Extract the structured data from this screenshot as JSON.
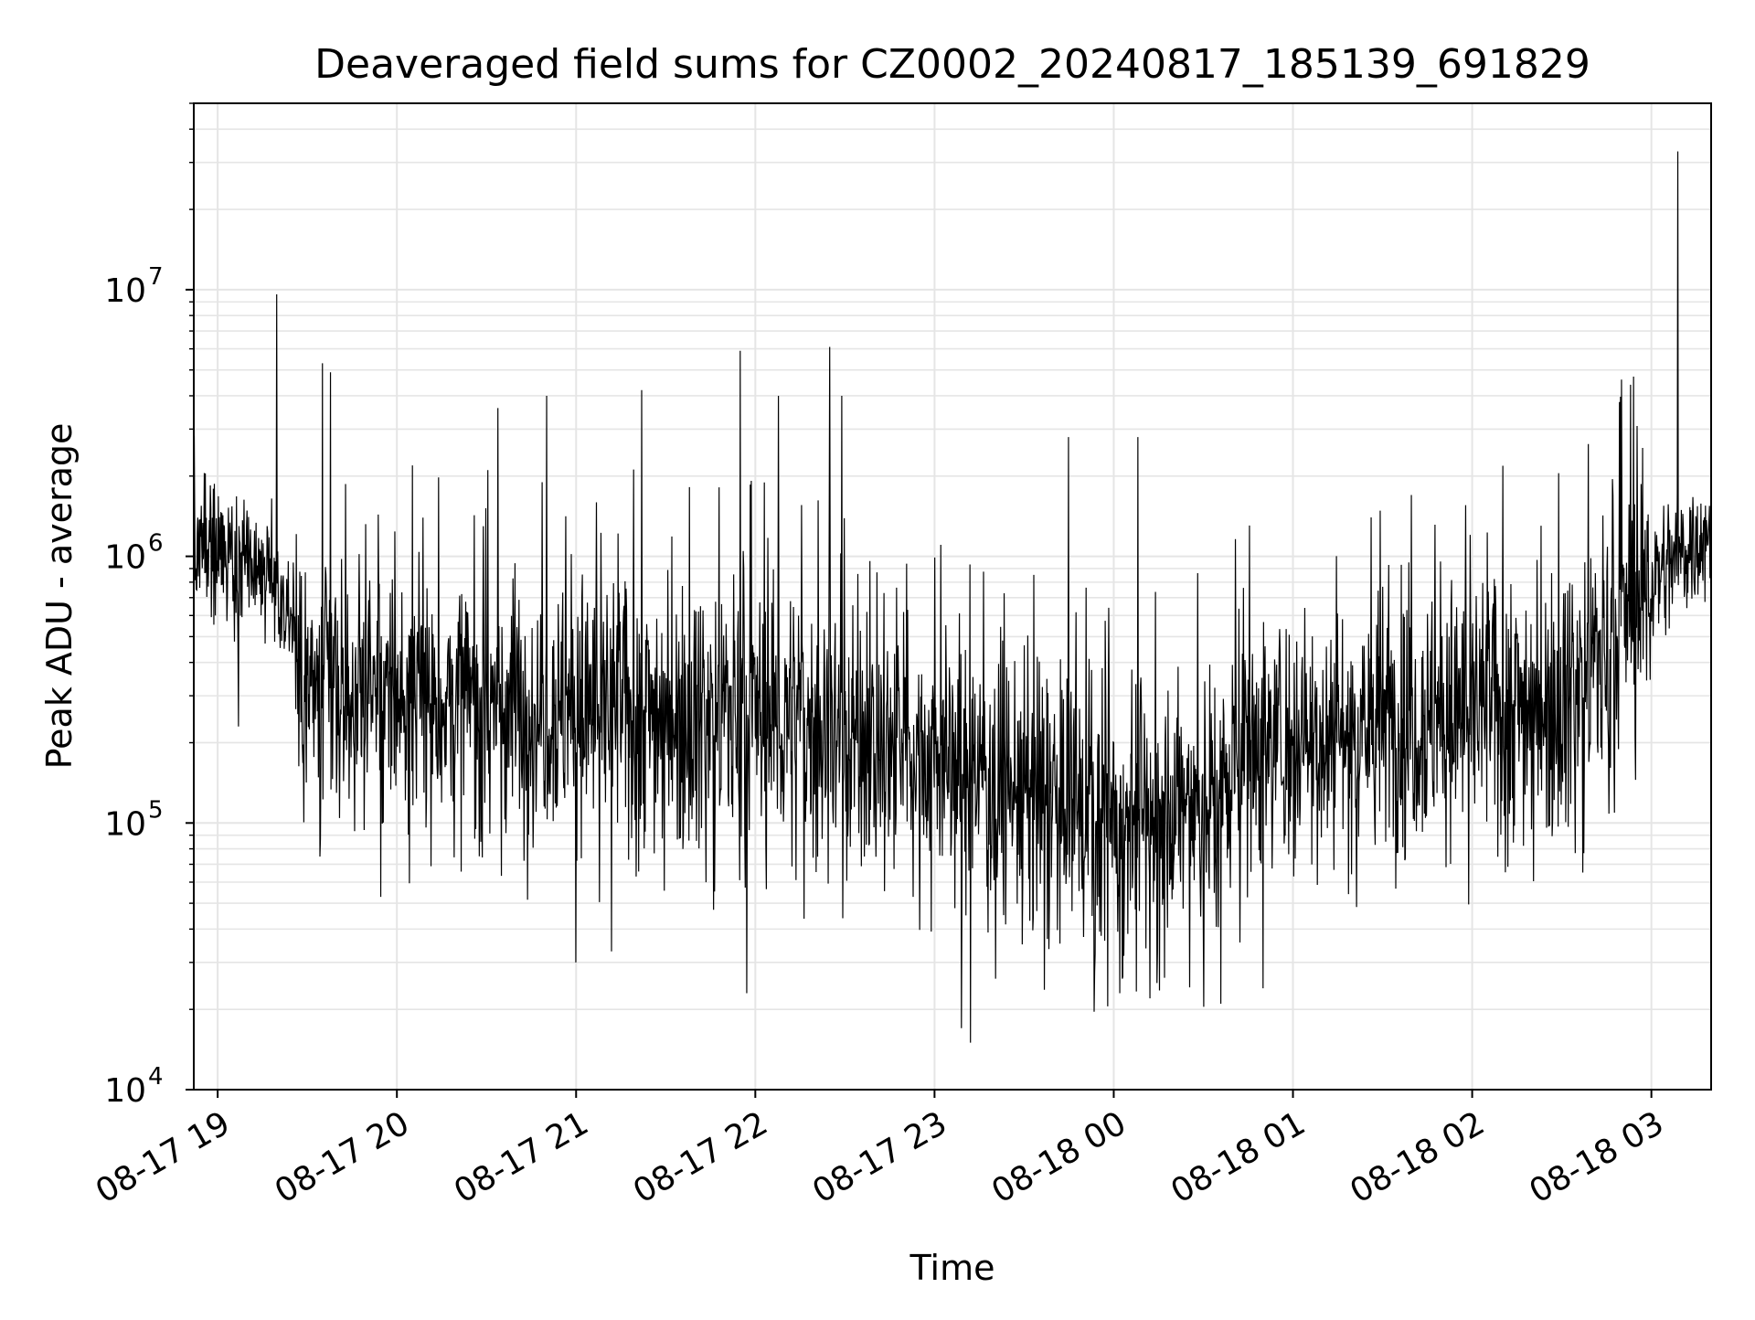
{
  "chart_data": {
    "type": "line",
    "title": "Deaveraged field sums for CZ0002_20240817_185139_691829",
    "xlabel": "Time",
    "ylabel": "Peak ADU - average",
    "yscale": "log",
    "xlim": [
      "2024-08-17 18:52",
      "2024-08-18 03:20"
    ],
    "ylim": [
      10000,
      50000000
    ],
    "grid": true,
    "legend": "none",
    "line_color": "#000000",
    "grid_color": "#e5e5e5",
    "x_ticks": [
      "08-17 19",
      "08-17 20",
      "08-17 21",
      "08-17 22",
      "08-17 23",
      "08-18 00",
      "08-18 01",
      "08-18 02",
      "08-18 03"
    ],
    "y_ticks": [
      {
        "base": "10",
        "exp": "4"
      },
      {
        "base": "10",
        "exp": "5"
      },
      {
        "base": "10",
        "exp": "6"
      },
      {
        "base": "10",
        "exp": "7"
      }
    ],
    "series": [
      {
        "x_start": "2024-08-17 18:52",
        "x_end": "2024-08-18 03:20",
        "envelope": [
          {
            "t": "2024-08-17 18:52",
            "median": 1200000
          },
          {
            "t": "2024-08-17 19:15",
            "median": 900000
          },
          {
            "t": "2024-08-17 19:25",
            "median": 600000
          },
          {
            "t": "2024-08-17 19:30",
            "median": 300000
          },
          {
            "t": "2024-08-17 20:30",
            "median": 280000
          },
          {
            "t": "2024-08-17 22:00",
            "median": 260000
          },
          {
            "t": "2024-08-17 23:00",
            "median": 180000
          },
          {
            "t": "2024-08-17 23:45",
            "median": 110000
          },
          {
            "t": "2024-08-18 00:30",
            "median": 110000
          },
          {
            "t": "2024-08-18 00:45",
            "median": 200000
          },
          {
            "t": "2024-08-18 02:30",
            "median": 300000
          },
          {
            "t": "2024-08-18 02:45",
            "median": 450000
          },
          {
            "t": "2024-08-18 03:00",
            "median": 800000
          },
          {
            "t": "2024-08-18 03:20",
            "median": 1300000
          }
        ],
        "peaks": [
          {
            "t": "2024-08-17 19:20",
            "value": 9600000
          },
          {
            "t": "2024-08-17 19:35",
            "value": 5300000
          },
          {
            "t": "2024-08-17 19:38",
            "value": 4900000
          },
          {
            "t": "2024-08-17 20:34",
            "value": 3600000
          },
          {
            "t": "2024-08-17 20:50",
            "value": 4000000
          },
          {
            "t": "2024-08-17 21:22",
            "value": 4200000
          },
          {
            "t": "2024-08-17 21:55",
            "value": 5900000
          },
          {
            "t": "2024-08-17 22:08",
            "value": 4000000
          },
          {
            "t": "2024-08-17 22:25",
            "value": 6100000
          },
          {
            "t": "2024-08-17 22:29",
            "value": 4000000
          },
          {
            "t": "2024-08-17 23:45",
            "value": 2800000
          },
          {
            "t": "2024-08-18 00:08",
            "value": 2800000
          },
          {
            "t": "2024-08-18 02:50",
            "value": 4600000
          },
          {
            "t": "2024-08-18 02:53",
            "value": 4400000
          },
          {
            "t": "2024-08-18 03:09",
            "value": 33000000
          }
        ],
        "troughs": [
          {
            "t": "2024-08-17 19:07",
            "value": 230000
          },
          {
            "t": "2024-08-17 21:00",
            "value": 30000
          },
          {
            "t": "2024-08-17 21:12",
            "value": 33000
          },
          {
            "t": "2024-08-17 21:57",
            "value": 23000
          },
          {
            "t": "2024-08-17 23:09",
            "value": 17000
          },
          {
            "t": "2024-08-17 23:12",
            "value": 15000
          },
          {
            "t": "2024-08-18 00:02",
            "value": 23000
          },
          {
            "t": "2024-08-18 00:12",
            "value": 22000
          },
          {
            "t": "2024-08-18 00:36",
            "value": 21000
          },
          {
            "t": "2024-08-18 00:50",
            "value": 24000
          }
        ]
      }
    ]
  }
}
